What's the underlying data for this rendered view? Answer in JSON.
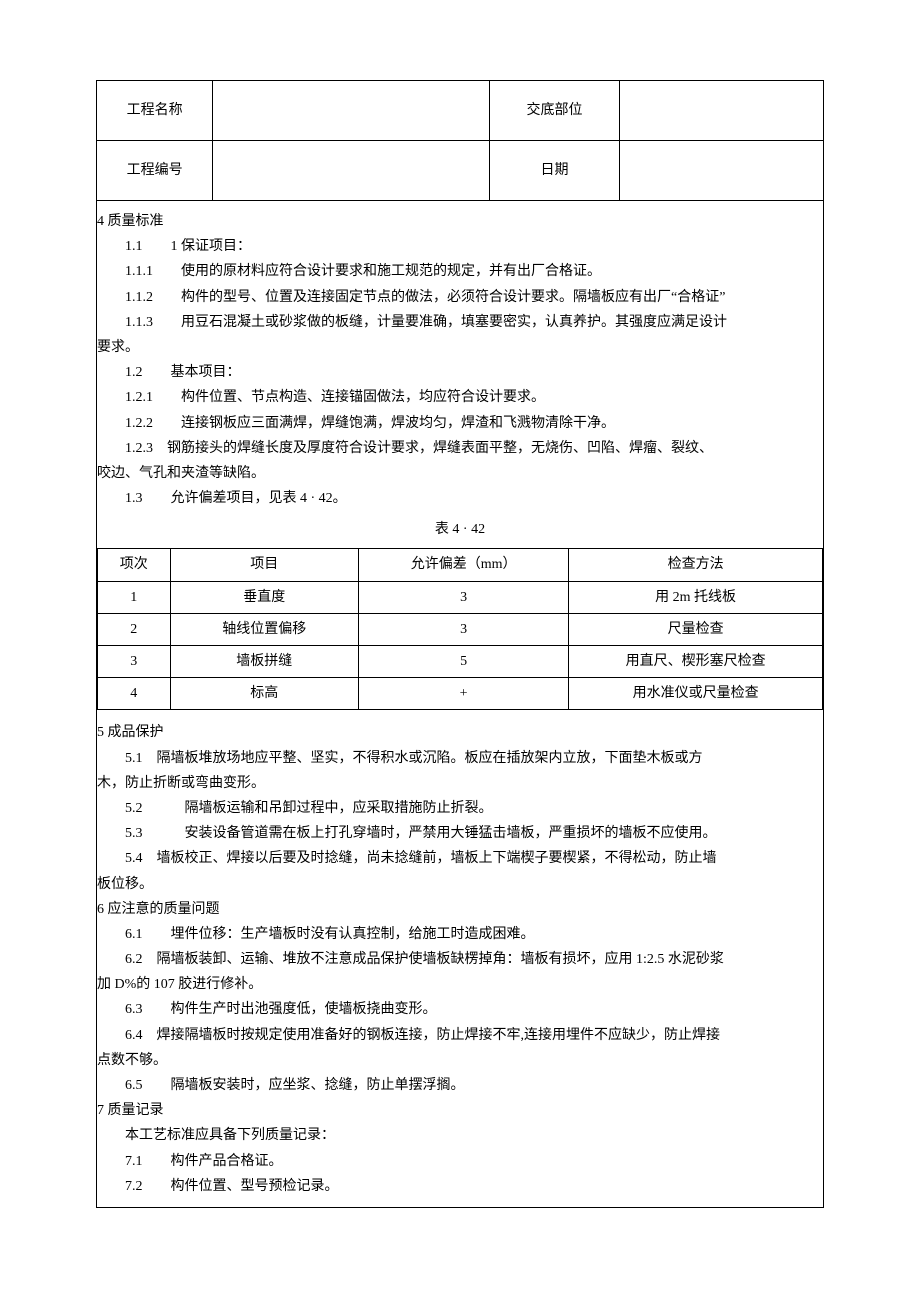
{
  "header": {
    "projectNameLabel": "工程名称",
    "projectNameValue": "",
    "disclosurePartLabel": "交底部位",
    "disclosurePartValue": "",
    "projectNoLabel": "工程编号",
    "projectNoValue": "",
    "dateLabel": "日期",
    "dateValue": ""
  },
  "sections": {
    "s4": {
      "title": "4 质量标准",
      "p11": "1.1　　1 保证项目：",
      "p111": "1.1.1　　使用的原材料应符合设计要求和施工规范的规定，并有出厂合格证。",
      "p112": "1.1.2　　构件的型号、位置及连接固定节点的做法，必须符合设计要求。隔墙板应有出厂“合格证”",
      "p113": "1.1.3　　用豆石混凝土或砂浆做的板缝，计量要准确，填塞要密实，认真养护。其强度应满足设计",
      "p113cont": "要求。",
      "p12": "1.2　　基本项目：",
      "p121": "1.2.1　　构件位置、节点构造、连接锚固做法，均应符合设计要求。",
      "p122": "1.2.2　　连接钢板应三面满焊，焊缝饱满，焊波均匀，焊渣和飞溅物清除干净。",
      "p123": "1.2.3　钢筋接头的焊缝长度及厚度符合设计要求，焊缝表面平整，无烧伤、凹陷、焊瘤、裂纹、",
      "p123cont": "咬边、气孔和夹渣等缺陷。",
      "p13": "1.3　　允许偏差项目，见表 4 · 42。",
      "tableCaption": "表 4 · 42",
      "table": {
        "headers": [
          "项次",
          "项目",
          "允许偏差（mm）",
          "检查方法"
        ],
        "rows": [
          [
            "1",
            "垂直度",
            "3",
            "用 2m 托线板"
          ],
          [
            "2",
            "轴线位置偏移",
            "3",
            "尺量检查"
          ],
          [
            "3",
            "墙板拼缝",
            "5",
            "用直尺、楔形塞尺检查"
          ],
          [
            "4",
            "标高",
            "+",
            "用水准仪或尺量检查"
          ]
        ]
      }
    },
    "s5": {
      "title": "5 成品保护",
      "p51": "5.1　隔墙板堆放场地应平整、坚实，不得积水或沉陷。板应在插放架内立放，下面垫木板或方",
      "p51cont": "木，防止折断或弯曲变形。",
      "p52": "5.2　　　隔墙板运输和吊卸过程中，应采取措施防止折裂。",
      "p53": "5.3　　　安装设备管道需在板上打孔穿墙时，严禁用大锤猛击墙板，严重损坏的墙板不应使用。",
      "p54": "5.4　墙板校正、焊接以后要及时捻缝，尚未捻缝前，墙板上下端楔子要楔紧，不得松动，防止墙",
      "p54cont": "板位移。"
    },
    "s6": {
      "title": "6 应注意的质量问题",
      "p61": "6.1　　埋件位移：生产墙板时没有认真控制，给施工时造成困难。",
      "p62": "6.2　隔墙板装卸、运输、堆放不注意成品保护使墙板缺楞掉角：墙板有损坏，应用 1:2.5 水泥砂浆",
      "p62cont": "加 D%的 107 胶进行修补。",
      "p63": "6.3　　构件生产时出池强度低，使墙板挠曲变形。",
      "p64": "6.4　焊接隔墙板时按规定使用准备好的钢板连接，防止焊接不牢,连接用埋件不应缺少，防止焊接",
      "p64cont": "点数不够。",
      "p65": "6.5　　隔墙板安装时，应坐浆、捻缝，防止单摆浮搁。"
    },
    "s7": {
      "title": "7 质量记录",
      "intro": "本工艺标准应具备下列质量记录：",
      "p71": "7.1　　构件产品合格证。",
      "p72": "7.2　　构件位置、型号预检记录。"
    }
  }
}
